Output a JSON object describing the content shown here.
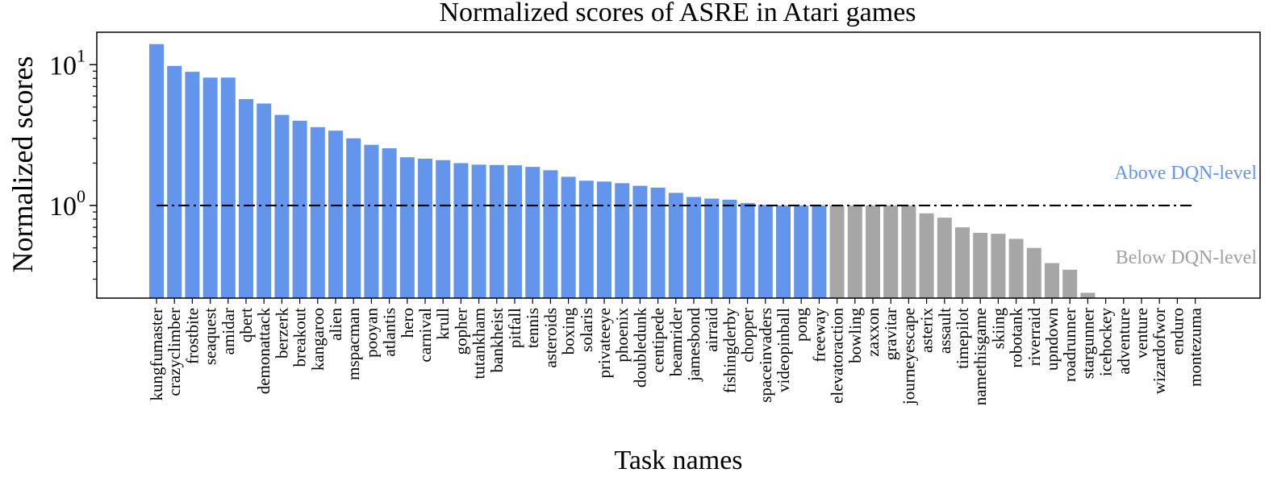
{
  "chart_data": {
    "type": "bar",
    "title": "Normalized scores of ASRE in Atari games",
    "xlabel": "Task names",
    "ylabel": "Normalized scores",
    "yscale": "log",
    "ylim": [
      0.22,
      17
    ],
    "yticks": [
      {
        "value": 1,
        "base": "10",
        "exp": "0"
      },
      {
        "value": 10,
        "base": "10",
        "exp": "1"
      }
    ],
    "reference_line": {
      "value": 1.0,
      "style": "dash-dot",
      "color": "#000000"
    },
    "annotations": [
      {
        "text": "Above DQN-level",
        "color": "#6495ED"
      },
      {
        "text": "Below DQN-level",
        "color": "#A0A0A0"
      }
    ],
    "colors": {
      "above": "#6495ED",
      "below": "#A6A6A6"
    },
    "grid": false,
    "categories": [
      "kungfumaster",
      "crazyclimber",
      "frostbite",
      "seaquest",
      "amidar",
      "qbert",
      "demonattack",
      "berzerk",
      "breakout",
      "kangaroo",
      "alien",
      "mspacman",
      "pooyan",
      "atlantis",
      "hero",
      "carnival",
      "krull",
      "gopher",
      "tutankham",
      "bankheist",
      "pitfall",
      "tennis",
      "asteroids",
      "boxing",
      "solaris",
      "privateeye",
      "phoenix",
      "doubledunk",
      "centipede",
      "beamrider",
      "jamesbond",
      "airraid",
      "fishingderby",
      "chopper",
      "spaceinvaders",
      "videopinball",
      "pong",
      "freeway",
      "elevatoraction",
      "bowling",
      "zaxxon",
      "gravitar",
      "journeyescape",
      "asterix",
      "assault",
      "timepilot",
      "namethisgame",
      "skiing",
      "robotank",
      "riverraid",
      "upndown",
      "roadrunner",
      "stargunner",
      "icehockey",
      "adventure",
      "venture",
      "wizardofwor",
      "enduro",
      "montezuma"
    ],
    "values": [
      14.0,
      9.8,
      8.9,
      8.1,
      8.1,
      5.7,
      5.3,
      4.4,
      4.0,
      3.6,
      3.4,
      3.0,
      2.7,
      2.55,
      2.2,
      2.15,
      2.1,
      2.0,
      1.95,
      1.94,
      1.93,
      1.88,
      1.78,
      1.6,
      1.5,
      1.48,
      1.44,
      1.38,
      1.34,
      1.23,
      1.15,
      1.12,
      1.1,
      1.04,
      1.01,
      1.0,
      1.0,
      1.0,
      1.0,
      1.0,
      1.0,
      1.0,
      1.0,
      0.88,
      0.82,
      0.7,
      0.64,
      0.63,
      0.58,
      0.5,
      0.39,
      0.35,
      0.24,
      0.2,
      0.2,
      0.2,
      0.2,
      0.2,
      0.2
    ],
    "groups": [
      "above",
      "above",
      "above",
      "above",
      "above",
      "above",
      "above",
      "above",
      "above",
      "above",
      "above",
      "above",
      "above",
      "above",
      "above",
      "above",
      "above",
      "above",
      "above",
      "above",
      "above",
      "above",
      "above",
      "above",
      "above",
      "above",
      "above",
      "above",
      "above",
      "above",
      "above",
      "above",
      "above",
      "above",
      "above",
      "above",
      "above",
      "above",
      "below",
      "below",
      "below",
      "below",
      "below",
      "below",
      "below",
      "below",
      "below",
      "below",
      "below",
      "below",
      "below",
      "below",
      "below",
      "below",
      "below",
      "below",
      "below",
      "below",
      "below"
    ]
  }
}
